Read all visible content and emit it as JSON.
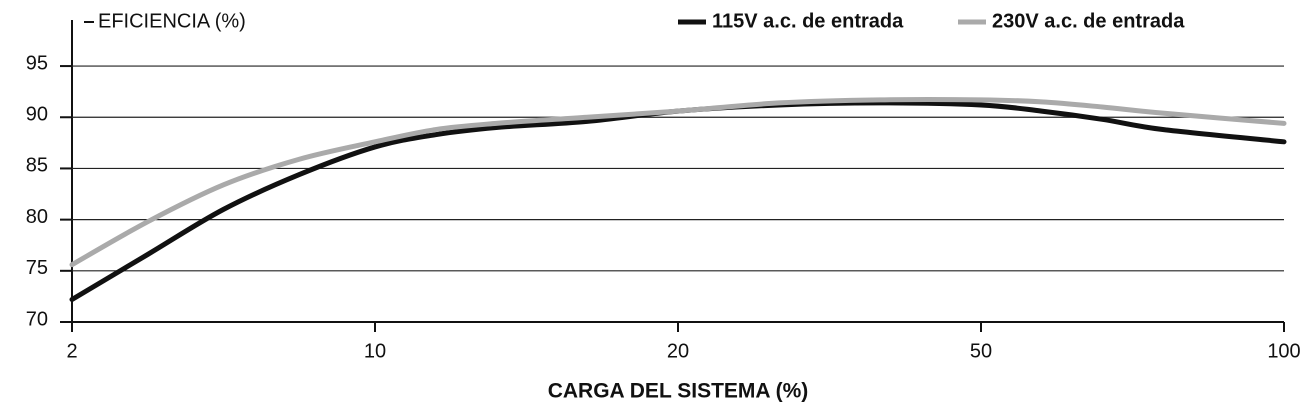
{
  "chart_data": {
    "type": "line",
    "y_axis_label": "EFICIENCIA (%)",
    "x_axis_label": "CARGA DEL SISTEMA (%)",
    "x": [
      2,
      4,
      6,
      8,
      10,
      12,
      14,
      17,
      20,
      30,
      40,
      50,
      60,
      70,
      80,
      100
    ],
    "series": [
      {
        "name": "115V a.c. de entrada",
        "color": "#111111",
        "values": [
          72.2,
          76.6,
          81.0,
          84.4,
          87.1,
          88.3,
          89.0,
          89.6,
          90.6,
          91.2,
          91.4,
          91.2,
          90.6,
          89.8,
          88.8,
          87.6
        ]
      },
      {
        "name": "230V a.c. de entrada",
        "color": "#aaaaaa",
        "values": [
          75.6,
          79.8,
          83.4,
          85.9,
          87.6,
          88.8,
          89.4,
          90.0,
          90.6,
          91.4,
          91.7,
          91.7,
          91.5,
          91.0,
          90.4,
          89.4
        ]
      }
    ],
    "xlim": [
      2,
      100
    ],
    "xticks": [
      2,
      10,
      20,
      50,
      100
    ],
    "x_scale": "tick-spaced",
    "ylim": [
      70,
      99.5
    ],
    "yticks": [
      70,
      75,
      80,
      85,
      90,
      95
    ],
    "grid": true,
    "legend": "top-right"
  }
}
